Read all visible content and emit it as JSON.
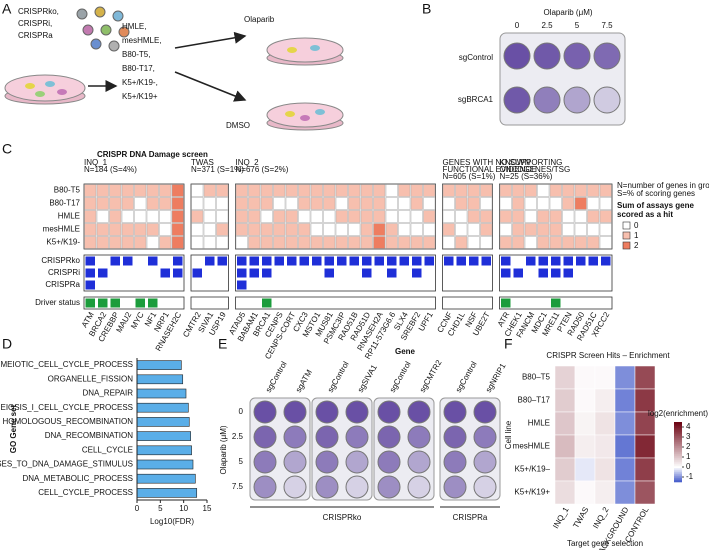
{
  "panel_a": {
    "label": "A",
    "libraries": [
      "CRISPRko,",
      "CRISPRi,",
      "CRISPRa"
    ],
    "cell_lines": [
      "HMLE,",
      "mesHMLE,",
      "B80-T5,",
      "B80-T17,",
      "K5+/K19-,",
      "K5+/K19+"
    ],
    "treatment": "Olaparib",
    "control": "DMSO"
  },
  "panel_b": {
    "label": "B",
    "title": "Olaparib (μM)",
    "concentrations": [
      0,
      2.5,
      5,
      7.5
    ],
    "rows": [
      "sgControl",
      "sgBRCA1"
    ]
  },
  "panel_c": {
    "label": "C",
    "title": "CRISPR DNA Damage screen",
    "groups": [
      {
        "name": [
          "INQ_1"
        ],
        "n": "N=184 (S=4%)",
        "genes": [
          "ATM",
          "BRCA2",
          "CREBBP",
          "MAU2",
          "MYC",
          "NF1",
          "NRP1",
          "RNASEH2C"
        ]
      },
      {
        "name": [
          "TWAS"
        ],
        "n": "N=371 (S=1%)",
        "genes": [
          "CMTR2",
          "SIVA1",
          "USP19"
        ]
      },
      {
        "name": [
          "INQ_2"
        ],
        "n": "N=676 (S=2%)",
        "genes": [
          "ATAD5",
          "BABAM1",
          "BRCA1",
          "CENPS",
          "CENPS-CORT",
          "CXC3",
          "MSTO1",
          "MUS81",
          "PSMC3IP",
          "RAD51B",
          "RAD51D",
          "RNASEH2A",
          "RP11-573G6.6",
          "SLX4",
          "SREBF2",
          "UPF1"
        ]
      },
      {
        "name": [
          "GENES WITH NO SUPPORTING",
          "FUNCTIONAL EVIDENCE"
        ],
        "n": "N=605 (S=1%)",
        "genes": [
          "CCNF",
          "CHD1L",
          "NSF",
          "UBE2T"
        ]
      },
      {
        "name": [
          "KNOWN",
          "ONCOGENES/TSG"
        ],
        "n": "N=25 (S=36%)",
        "genes": [
          "ATR",
          "CHEK1",
          "FANCM",
          "MDC1",
          "MRE11",
          "PTEN",
          "RAD50",
          "RAD51C",
          "XRCC2"
        ]
      }
    ],
    "cell_lines": [
      "B80-T5",
      "B80-T17",
      "HMLE",
      "mesHMLE",
      "K5+/K19-"
    ],
    "scores": [
      [
        1,
        1,
        1,
        1,
        1,
        1,
        1,
        2,
        0,
        1,
        1,
        1,
        1,
        1,
        1,
        1,
        1,
        1,
        1,
        1,
        1,
        1,
        1,
        0,
        1,
        1,
        1,
        1,
        1,
        1,
        1,
        1,
        1,
        1,
        0,
        1,
        1,
        1,
        1,
        1
      ],
      [
        1,
        1,
        1,
        1,
        0,
        1,
        1,
        2,
        0,
        0,
        0,
        1,
        1,
        1,
        0,
        0,
        1,
        1,
        1,
        0,
        1,
        1,
        1,
        0,
        0,
        1,
        0,
        0,
        1,
        1,
        0,
        0,
        1,
        0,
        0,
        0,
        1,
        2,
        0,
        0
      ],
      [
        1,
        0,
        1,
        0,
        0,
        0,
        0,
        2,
        1,
        0,
        0,
        1,
        1,
        0,
        1,
        1,
        0,
        0,
        0,
        1,
        1,
        1,
        1,
        0,
        0,
        0,
        1,
        0,
        0,
        1,
        1,
        1,
        1,
        0,
        1,
        1,
        0,
        0,
        1,
        1
      ],
      [
        1,
        1,
        1,
        1,
        1,
        1,
        0,
        2,
        0,
        0,
        1,
        1,
        1,
        1,
        1,
        1,
        1,
        0,
        0,
        0,
        0,
        1,
        2,
        1,
        0,
        0,
        0,
        1,
        0,
        0,
        1,
        0,
        1,
        1,
        1,
        1,
        0,
        0,
        0,
        0
      ],
      [
        1,
        1,
        1,
        1,
        1,
        0,
        1,
        2,
        0,
        0,
        0,
        0,
        1,
        1,
        1,
        1,
        1,
        1,
        1,
        1,
        1,
        1,
        2,
        1,
        1,
        1,
        1,
        0,
        1,
        0,
        0,
        1,
        1,
        0,
        1,
        1,
        1,
        1,
        1,
        0
      ]
    ],
    "screens": [
      "CRISPRko",
      "CRISPRi",
      "CRISPRa"
    ],
    "screen_hits": [
      [
        1,
        0,
        1,
        1,
        0,
        1,
        0,
        1,
        0,
        1,
        1,
        1,
        1,
        1,
        1,
        1,
        1,
        1,
        1,
        1,
        1,
        1,
        1,
        1,
        1,
        1,
        1,
        1,
        1,
        1,
        1,
        1,
        0,
        1,
        1,
        1,
        1,
        1,
        1,
        1
      ],
      [
        1,
        1,
        0,
        0,
        0,
        0,
        1,
        1,
        1,
        0,
        0,
        1,
        1,
        1,
        0,
        0,
        0,
        0,
        1,
        0,
        0,
        1,
        0,
        1,
        0,
        1,
        0,
        0,
        0,
        0,
        0,
        1,
        1,
        0,
        1,
        1,
        1,
        0,
        0,
        0
      ],
      [
        1,
        0,
        0,
        0,
        0,
        0,
        0,
        0,
        0,
        0,
        0,
        1,
        0,
        0,
        0,
        0,
        0,
        0,
        0,
        0,
        0,
        0,
        0,
        0,
        0,
        0,
        0,
        0,
        0,
        0,
        0,
        0,
        0,
        0,
        0,
        0,
        0,
        0,
        0,
        0
      ]
    ],
    "hit_color": "#1f2fd8",
    "driver_label": "Driver status",
    "driver_status": [
      1,
      1,
      1,
      0,
      1,
      1,
      0,
      0,
      0,
      0,
      0,
      0,
      0,
      1,
      0,
      0,
      0,
      0,
      0,
      0,
      0,
      0,
      0,
      0,
      0,
      0,
      0,
      0,
      0,
      0,
      0,
      1,
      0,
      0,
      0,
      1,
      0,
      0,
      0,
      0
    ],
    "driver_color": "#1c9c3c",
    "notes": [
      "N=number of genes in group",
      "S=% of scoring genes"
    ],
    "legend_title": [
      "Sum of assays gene",
      "scored as a hit"
    ],
    "legend": [
      {
        "value": 0,
        "color": "#ffffff"
      },
      {
        "value": 1,
        "color": "#f7bfae"
      },
      {
        "value": 2,
        "color": "#ee7d60"
      }
    ]
  },
  "panel_d": {
    "label": "D",
    "type": "bar",
    "orientation": "horizontal",
    "categories": [
      "MEIOTIC_CELL_CYCLE_PROCESS",
      "ORGANELLE_FISSION",
      "DNA_REPAIR",
      "MEIOSIS_I_CELL_CYCLE_PROCESS",
      "HOMOLOGOUS_RECOMBINATION",
      "DNA_RECOMBINATION",
      "CELL_CYCLE",
      "RESPONSES_TO_DNA_DAMAGE_STIMULUS",
      "DNA_METABOLIC_PROCESS",
      "CELL_CYCLE_PROCESS"
    ],
    "values": [
      9.5,
      9.8,
      10.5,
      11,
      11.2,
      11.5,
      11.7,
      12,
      12.5,
      12.8
    ],
    "color": "#5aaee8",
    "xlim": [
      0,
      15
    ],
    "xticks": [
      0,
      5,
      10,
      15
    ],
    "xlabel": "Log10(FDR)",
    "ylabel": "GO Gene set"
  },
  "panel_e": {
    "label": "E",
    "header": "Gene",
    "guides": [
      "sgControl",
      "sgATM",
      "sgControl",
      "sgSIVA1",
      "sgControl",
      "sgCMTR2",
      "sgControl",
      "sgNRIP1"
    ],
    "concentrations": [
      0,
      2.5,
      5,
      7.5
    ],
    "ylabel": "Olaparib (μM)",
    "screens": [
      "CRISPRko",
      "CRISPRa"
    ]
  },
  "panel_f": {
    "label": "F",
    "type": "heatmap",
    "title": "CRISPR Screen Hits – Enrichment",
    "rows": [
      "B80–T5",
      "B80–T17",
      "HMLE",
      "mesHMLE",
      "K5+/K19–",
      "K5+/K19+"
    ],
    "columns": [
      "INQ_1",
      "TWAS",
      "INQ_2",
      "BACKGROUND",
      "CONTROL"
    ],
    "column_colors": [
      "#e0161b",
      "#1a9a2a",
      "#2a2ad0",
      "#a0141a",
      "#111111"
    ],
    "values": [
      [
        0.8,
        0.1,
        0.1,
        -1.0,
        3.2
      ],
      [
        0.9,
        0.1,
        0.3,
        -1.1,
        3.5
      ],
      [
        1.0,
        0.2,
        0.5,
        -1.0,
        3.3
      ],
      [
        1.2,
        0.3,
        0.4,
        -1.2,
        3.8
      ],
      [
        0.9,
        -0.2,
        0.5,
        -1.1,
        3.4
      ],
      [
        0.6,
        0.1,
        0.3,
        -1.0,
        3.0
      ]
    ],
    "colorbar_label": "log2(enrichment)",
    "clim": [
      -1.5,
      4.5
    ],
    "cticks": [
      -1,
      0,
      1,
      2,
      3,
      4
    ],
    "colors": [
      "#3d55c8",
      "#ffffff",
      "#6b0010"
    ],
    "ylabel": "Cell line",
    "xlabel": "Target gene selection"
  }
}
